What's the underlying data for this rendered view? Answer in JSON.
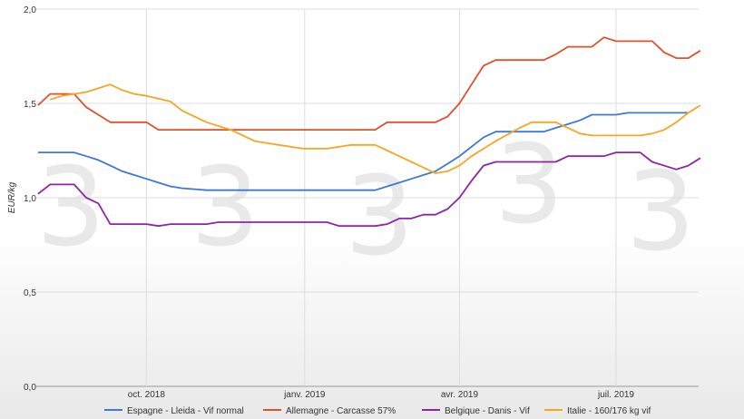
{
  "chart_data": {
    "type": "line",
    "ylabel": "EUR/kg",
    "ylim": [
      0,
      2
    ],
    "xlim": [
      "2018-07-29",
      "2019-08-18"
    ],
    "grid": true,
    "legend_position": "bottom",
    "y_ticks": [
      "0,0",
      "0,5",
      "1,0",
      "1,5",
      "2,0"
    ],
    "y_tick_values": [
      0,
      0.5,
      1.0,
      1.5,
      2.0
    ],
    "x_ticks": [
      {
        "label": "oct. 2018",
        "date": "2018-10-01"
      },
      {
        "label": "janv. 2019",
        "date": "2019-01-01"
      },
      {
        "label": "avr. 2019",
        "date": "2019-04-01"
      },
      {
        "label": "juil. 2019",
        "date": "2019-07-01"
      }
    ],
    "watermark": "3",
    "series": [
      {
        "name": "Espagne - Lleida - Vif normal",
        "color": "#3c78d8",
        "points": [
          [
            "2018-07-30",
            1.24
          ],
          [
            "2018-08-06",
            1.24
          ],
          [
            "2018-08-13",
            1.24
          ],
          [
            "2018-08-20",
            1.24
          ],
          [
            "2018-08-27",
            1.22
          ],
          [
            "2018-09-03",
            1.2
          ],
          [
            "2018-09-10",
            1.17
          ],
          [
            "2018-09-17",
            1.14
          ],
          [
            "2018-09-24",
            1.12
          ],
          [
            "2018-10-01",
            1.1
          ],
          [
            "2018-10-08",
            1.08
          ],
          [
            "2018-10-15",
            1.06
          ],
          [
            "2018-10-22",
            1.05
          ],
          [
            "2018-10-29",
            1.045
          ],
          [
            "2018-11-05",
            1.04
          ],
          [
            "2018-12-03",
            1.04
          ],
          [
            "2019-01-07",
            1.04
          ],
          [
            "2019-02-04",
            1.04
          ],
          [
            "2019-02-11",
            1.04
          ],
          [
            "2019-02-18",
            1.06
          ],
          [
            "2019-02-25",
            1.08
          ],
          [
            "2019-03-04",
            1.1
          ],
          [
            "2019-03-11",
            1.12
          ],
          [
            "2019-03-18",
            1.14
          ],
          [
            "2019-03-25",
            1.18
          ],
          [
            "2019-04-01",
            1.22
          ],
          [
            "2019-04-08",
            1.27
          ],
          [
            "2019-04-15",
            1.32
          ],
          [
            "2019-04-22",
            1.35
          ],
          [
            "2019-05-06",
            1.35
          ],
          [
            "2019-05-20",
            1.35
          ],
          [
            "2019-05-27",
            1.37
          ],
          [
            "2019-06-03",
            1.39
          ],
          [
            "2019-06-10",
            1.41
          ],
          [
            "2019-06-17",
            1.44
          ],
          [
            "2019-07-01",
            1.44
          ],
          [
            "2019-07-08",
            1.45
          ],
          [
            "2019-08-05",
            1.45
          ],
          [
            "2019-08-12",
            1.45
          ]
        ]
      },
      {
        "name": "Allemagne - Carcasse 57%",
        "color": "#e0502a",
        "points": [
          [
            "2018-07-30",
            1.49
          ],
          [
            "2018-08-06",
            1.55
          ],
          [
            "2018-08-20",
            1.55
          ],
          [
            "2018-08-27",
            1.48
          ],
          [
            "2018-09-03",
            1.44
          ],
          [
            "2018-09-10",
            1.4
          ],
          [
            "2018-10-01",
            1.4
          ],
          [
            "2018-10-08",
            1.36
          ],
          [
            "2018-11-05",
            1.36
          ],
          [
            "2018-12-03",
            1.36
          ],
          [
            "2019-01-07",
            1.36
          ],
          [
            "2019-02-04",
            1.36
          ],
          [
            "2019-02-11",
            1.36
          ],
          [
            "2019-02-18",
            1.4
          ],
          [
            "2019-03-18",
            1.4
          ],
          [
            "2019-03-25",
            1.43
          ],
          [
            "2019-04-01",
            1.5
          ],
          [
            "2019-04-08",
            1.6
          ],
          [
            "2019-04-15",
            1.7
          ],
          [
            "2019-04-22",
            1.73
          ],
          [
            "2019-05-20",
            1.73
          ],
          [
            "2019-05-27",
            1.76
          ],
          [
            "2019-06-03",
            1.8
          ],
          [
            "2019-06-17",
            1.8
          ],
          [
            "2019-06-24",
            1.85
          ],
          [
            "2019-07-01",
            1.83
          ],
          [
            "2019-07-22",
            1.83
          ],
          [
            "2019-07-29",
            1.77
          ],
          [
            "2019-08-05",
            1.74
          ],
          [
            "2019-08-12",
            1.74
          ],
          [
            "2019-08-19",
            1.78
          ]
        ]
      },
      {
        "name": "Belgique - Danis - Vif",
        "color": "#8e24aa",
        "points": [
          [
            "2018-07-30",
            1.02
          ],
          [
            "2018-08-06",
            1.07
          ],
          [
            "2018-08-20",
            1.07
          ],
          [
            "2018-08-27",
            1.0
          ],
          [
            "2018-09-03",
            0.97
          ],
          [
            "2018-09-10",
            0.86
          ],
          [
            "2018-10-01",
            0.86
          ],
          [
            "2018-10-08",
            0.85
          ],
          [
            "2018-10-15",
            0.86
          ],
          [
            "2018-11-05",
            0.86
          ],
          [
            "2018-11-12",
            0.87
          ],
          [
            "2018-12-17",
            0.87
          ],
          [
            "2019-01-14",
            0.87
          ],
          [
            "2019-01-21",
            0.85
          ],
          [
            "2019-02-11",
            0.85
          ],
          [
            "2019-02-18",
            0.86
          ],
          [
            "2019-02-25",
            0.89
          ],
          [
            "2019-03-04",
            0.89
          ],
          [
            "2019-03-11",
            0.91
          ],
          [
            "2019-03-18",
            0.91
          ],
          [
            "2019-03-25",
            0.94
          ],
          [
            "2019-04-01",
            1.0
          ],
          [
            "2019-04-08",
            1.09
          ],
          [
            "2019-04-15",
            1.17
          ],
          [
            "2019-04-22",
            1.19
          ],
          [
            "2019-05-27",
            1.19
          ],
          [
            "2019-06-03",
            1.22
          ],
          [
            "2019-06-24",
            1.22
          ],
          [
            "2019-07-01",
            1.24
          ],
          [
            "2019-07-15",
            1.24
          ],
          [
            "2019-07-22",
            1.19
          ],
          [
            "2019-08-05",
            1.15
          ],
          [
            "2019-08-12",
            1.17
          ],
          [
            "2019-08-19",
            1.21
          ]
        ]
      },
      {
        "name": "Italie - 160/176 kg vif",
        "color": "#f6a623",
        "points": [
          [
            "2018-08-06",
            1.52
          ],
          [
            "2018-08-13",
            1.54
          ],
          [
            "2018-08-20",
            1.55
          ],
          [
            "2018-08-27",
            1.56
          ],
          [
            "2018-09-03",
            1.58
          ],
          [
            "2018-09-10",
            1.6
          ],
          [
            "2018-09-17",
            1.57
          ],
          [
            "2018-09-24",
            1.55
          ],
          [
            "2018-10-01",
            1.54
          ],
          [
            "2018-10-15",
            1.51
          ],
          [
            "2018-10-22",
            1.46
          ],
          [
            "2018-11-05",
            1.4
          ],
          [
            "2018-11-19",
            1.36
          ],
          [
            "2018-12-03",
            1.3
          ],
          [
            "2018-12-17",
            1.28
          ],
          [
            "2018-12-31",
            1.26
          ],
          [
            "2019-01-14",
            1.26
          ],
          [
            "2019-01-28",
            1.28
          ],
          [
            "2019-02-11",
            1.28
          ],
          [
            "2019-02-18",
            1.25
          ],
          [
            "2019-02-25",
            1.22
          ],
          [
            "2019-03-04",
            1.19
          ],
          [
            "2019-03-11",
            1.16
          ],
          [
            "2019-03-18",
            1.13
          ],
          [
            "2019-03-25",
            1.14
          ],
          [
            "2019-04-01",
            1.17
          ],
          [
            "2019-04-08",
            1.22
          ],
          [
            "2019-04-22",
            1.3
          ],
          [
            "2019-05-06",
            1.37
          ],
          [
            "2019-05-13",
            1.4
          ],
          [
            "2019-05-27",
            1.4
          ],
          [
            "2019-06-03",
            1.37
          ],
          [
            "2019-06-10",
            1.34
          ],
          [
            "2019-06-17",
            1.33
          ],
          [
            "2019-07-08",
            1.33
          ],
          [
            "2019-07-15",
            1.33
          ],
          [
            "2019-07-22",
            1.34
          ],
          [
            "2019-07-29",
            1.36
          ],
          [
            "2019-08-05",
            1.4
          ],
          [
            "2019-08-12",
            1.45
          ],
          [
            "2019-08-19",
            1.49
          ]
        ]
      }
    ]
  }
}
